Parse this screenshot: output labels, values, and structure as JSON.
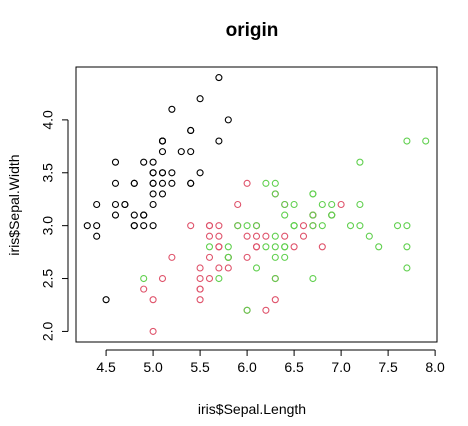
{
  "chart_data": {
    "type": "scatter",
    "title": "origin",
    "xlabel": "iris$Sepal.Length",
    "ylabel": "iris$Sepal.Width",
    "xlim": [
      4.18,
      8.02
    ],
    "ylim": [
      1.9,
      4.5
    ],
    "xticks": [
      4.5,
      5.0,
      5.5,
      6.0,
      6.5,
      7.0,
      7.5,
      8.0
    ],
    "xtick_labels": [
      "4.5",
      "5.0",
      "5.5",
      "6.0",
      "6.5",
      "7.0",
      "7.5",
      "8.0"
    ],
    "yticks": [
      2.0,
      2.5,
      3.0,
      3.5,
      4.0
    ],
    "ytick_labels": [
      "2.0",
      "2.5",
      "3.0",
      "3.5",
      "4.0"
    ],
    "grid": false,
    "series": [
      {
        "color": "#000000",
        "marker": "open-circle",
        "points": [
          [
            5.1,
            3.5
          ],
          [
            4.9,
            3.0
          ],
          [
            4.7,
            3.2
          ],
          [
            4.6,
            3.1
          ],
          [
            5.0,
            3.6
          ],
          [
            5.4,
            3.9
          ],
          [
            4.6,
            3.4
          ],
          [
            5.0,
            3.4
          ],
          [
            4.4,
            2.9
          ],
          [
            4.9,
            3.1
          ],
          [
            5.4,
            3.7
          ],
          [
            4.8,
            3.4
          ],
          [
            4.8,
            3.0
          ],
          [
            4.3,
            3.0
          ],
          [
            5.8,
            4.0
          ],
          [
            5.7,
            4.4
          ],
          [
            5.4,
            3.9
          ],
          [
            5.1,
            3.5
          ],
          [
            5.7,
            3.8
          ],
          [
            5.1,
            3.8
          ],
          [
            5.4,
            3.4
          ],
          [
            5.1,
            3.7
          ],
          [
            4.6,
            3.6
          ],
          [
            5.1,
            3.3
          ],
          [
            4.8,
            3.4
          ],
          [
            5.0,
            3.0
          ],
          [
            5.0,
            3.4
          ],
          [
            5.2,
            3.5
          ],
          [
            5.2,
            3.4
          ],
          [
            4.7,
            3.2
          ],
          [
            4.8,
            3.1
          ],
          [
            5.4,
            3.4
          ],
          [
            5.2,
            4.1
          ],
          [
            5.5,
            4.2
          ],
          [
            4.9,
            3.1
          ],
          [
            5.0,
            3.2
          ],
          [
            5.5,
            3.5
          ],
          [
            4.9,
            3.6
          ],
          [
            4.4,
            3.0
          ],
          [
            5.1,
            3.4
          ],
          [
            5.0,
            3.5
          ],
          [
            4.5,
            2.3
          ],
          [
            4.4,
            3.2
          ],
          [
            5.0,
            3.5
          ],
          [
            5.1,
            3.8
          ],
          [
            4.8,
            3.0
          ],
          [
            5.1,
            3.8
          ],
          [
            4.6,
            3.2
          ],
          [
            5.3,
            3.7
          ],
          [
            5.0,
            3.3
          ]
        ]
      },
      {
        "color": "#DF536B",
        "marker": "open-circle",
        "points": [
          [
            7.0,
            3.2
          ],
          [
            6.4,
            3.2
          ],
          [
            6.9,
            3.1
          ],
          [
            5.5,
            2.3
          ],
          [
            6.5,
            2.8
          ],
          [
            5.7,
            2.8
          ],
          [
            6.3,
            3.3
          ],
          [
            4.9,
            2.4
          ],
          [
            6.6,
            2.9
          ],
          [
            5.2,
            2.7
          ],
          [
            5.0,
            2.0
          ],
          [
            5.9,
            3.0
          ],
          [
            6.0,
            2.2
          ],
          [
            6.1,
            2.9
          ],
          [
            5.6,
            2.9
          ],
          [
            6.7,
            3.1
          ],
          [
            5.6,
            3.0
          ],
          [
            5.8,
            2.7
          ],
          [
            6.2,
            2.2
          ],
          [
            5.6,
            2.5
          ],
          [
            5.9,
            3.2
          ],
          [
            6.1,
            2.8
          ],
          [
            6.3,
            2.5
          ],
          [
            6.1,
            2.8
          ],
          [
            6.4,
            2.9
          ],
          [
            6.6,
            3.0
          ],
          [
            6.8,
            2.8
          ],
          [
            6.7,
            3.0
          ],
          [
            6.0,
            2.9
          ],
          [
            5.7,
            2.6
          ],
          [
            5.5,
            2.4
          ],
          [
            5.5,
            2.4
          ],
          [
            5.8,
            2.7
          ],
          [
            6.0,
            2.7
          ],
          [
            5.4,
            3.0
          ],
          [
            6.0,
            3.4
          ],
          [
            6.7,
            3.1
          ],
          [
            6.3,
            2.3
          ],
          [
            5.6,
            3.0
          ],
          [
            5.5,
            2.5
          ],
          [
            5.5,
            2.6
          ],
          [
            6.1,
            3.0
          ],
          [
            5.8,
            2.6
          ],
          [
            5.0,
            2.3
          ],
          [
            5.6,
            2.7
          ],
          [
            5.7,
            3.0
          ],
          [
            5.7,
            2.9
          ],
          [
            6.2,
            2.9
          ],
          [
            5.1,
            2.5
          ],
          [
            5.7,
            2.8
          ]
        ]
      },
      {
        "color": "#61D04F",
        "marker": "open-circle",
        "points": [
          [
            6.3,
            3.3
          ],
          [
            5.8,
            2.7
          ],
          [
            7.1,
            3.0
          ],
          [
            6.3,
            2.9
          ],
          [
            6.5,
            3.0
          ],
          [
            7.6,
            3.0
          ],
          [
            4.9,
            2.5
          ],
          [
            7.3,
            2.9
          ],
          [
            6.7,
            2.5
          ],
          [
            7.2,
            3.6
          ],
          [
            6.5,
            3.2
          ],
          [
            6.4,
            2.7
          ],
          [
            6.8,
            3.0
          ],
          [
            5.7,
            2.5
          ],
          [
            5.8,
            2.8
          ],
          [
            6.4,
            3.2
          ],
          [
            6.5,
            3.0
          ],
          [
            7.7,
            3.8
          ],
          [
            7.7,
            2.6
          ],
          [
            6.0,
            2.2
          ],
          [
            6.9,
            3.2
          ],
          [
            5.6,
            2.8
          ],
          [
            7.7,
            2.8
          ],
          [
            6.3,
            2.7
          ],
          [
            6.7,
            3.3
          ],
          [
            7.2,
            3.2
          ],
          [
            6.2,
            2.8
          ],
          [
            6.1,
            3.0
          ],
          [
            6.4,
            2.8
          ],
          [
            7.2,
            3.0
          ],
          [
            7.4,
            2.8
          ],
          [
            7.9,
            3.8
          ],
          [
            6.4,
            2.8
          ],
          [
            6.3,
            2.8
          ],
          [
            6.1,
            2.6
          ],
          [
            7.7,
            3.0
          ],
          [
            6.3,
            3.4
          ],
          [
            6.4,
            3.1
          ],
          [
            6.0,
            3.0
          ],
          [
            6.9,
            3.1
          ],
          [
            6.7,
            3.1
          ],
          [
            6.9,
            3.1
          ],
          [
            5.8,
            2.7
          ],
          [
            6.8,
            3.2
          ],
          [
            6.7,
            3.3
          ],
          [
            6.7,
            3.0
          ],
          [
            6.3,
            2.5
          ],
          [
            6.5,
            3.0
          ],
          [
            6.2,
            3.4
          ],
          [
            5.9,
            3.0
          ]
        ]
      }
    ]
  }
}
